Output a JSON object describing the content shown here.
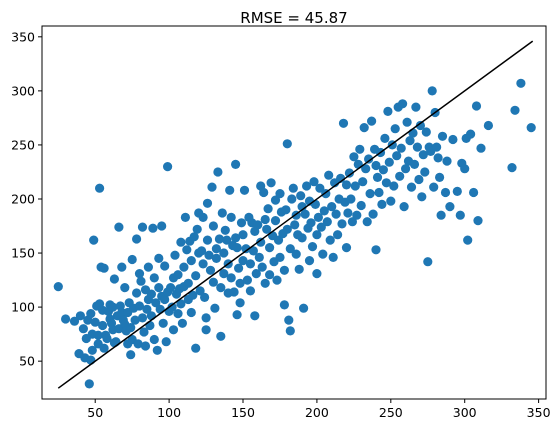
{
  "chart_data": {
    "type": "scatter",
    "title": "RMSE = 45.87",
    "xlabel": "",
    "ylabel": "",
    "xlim": [
      14,
      355
    ],
    "ylim": [
      15,
      360
    ],
    "xticks": [
      50,
      100,
      150,
      200,
      250,
      300,
      350
    ],
    "yticks": [
      50,
      100,
      150,
      200,
      250,
      300,
      350
    ],
    "grid": false,
    "legend": "none",
    "colors": {
      "points": "#1f77b4",
      "line": "#000000"
    },
    "reference_line": {
      "x": [
        25,
        346
      ],
      "y": [
        25,
        346
      ]
    },
    "points": [
      [
        25,
        119
      ],
      [
        30,
        89
      ],
      [
        36,
        87
      ],
      [
        39,
        57
      ],
      [
        40,
        92
      ],
      [
        42,
        80
      ],
      [
        43,
        53
      ],
      [
        44,
        71
      ],
      [
        45,
        88
      ],
      [
        46,
        29
      ],
      [
        47,
        51
      ],
      [
        47,
        94
      ],
      [
        48,
        75
      ],
      [
        48,
        60
      ],
      [
        49,
        162
      ],
      [
        50,
        86
      ],
      [
        51,
        101
      ],
      [
        52,
        74
      ],
      [
        52,
        66
      ],
      [
        53,
        210
      ],
      [
        53,
        103
      ],
      [
        54,
        137
      ],
      [
        55,
        97
      ],
      [
        55,
        83
      ],
      [
        56,
        136
      ],
      [
        56,
        62
      ],
      [
        57,
        74
      ],
      [
        58,
        71
      ],
      [
        59,
        96
      ],
      [
        60,
        102
      ],
      [
        60,
        89
      ],
      [
        61,
        85
      ],
      [
        62,
        79
      ],
      [
        62,
        100
      ],
      [
        63,
        67
      ],
      [
        63,
        126
      ],
      [
        64,
        68
      ],
      [
        65,
        92
      ],
      [
        66,
        174
      ],
      [
        66,
        80
      ],
      [
        67,
        101
      ],
      [
        68,
        137
      ],
      [
        68,
        95
      ],
      [
        69,
        88
      ],
      [
        70,
        84
      ],
      [
        70,
        118
      ],
      [
        71,
        78
      ],
      [
        72,
        95
      ],
      [
        72,
        66
      ],
      [
        73,
        104
      ],
      [
        74,
        81
      ],
      [
        74,
        56
      ],
      [
        75,
        144
      ],
      [
        75,
        70
      ],
      [
        76,
        99
      ],
      [
        77,
        88
      ],
      [
        78,
        113
      ],
      [
        78,
        163
      ],
      [
        79,
        66
      ],
      [
        80,
        101
      ],
      [
        80,
        131
      ],
      [
        81,
        124
      ],
      [
        82,
        174
      ],
      [
        82,
        90
      ],
      [
        83,
        77
      ],
      [
        84,
        116
      ],
      [
        84,
        64
      ],
      [
        85,
        98
      ],
      [
        86,
        137
      ],
      [
        86,
        107
      ],
      [
        87,
        83
      ],
      [
        88,
        112
      ],
      [
        88,
        92
      ],
      [
        89,
        173
      ],
      [
        90,
        70
      ],
      [
        90,
        127
      ],
      [
        91,
        104
      ],
      [
        92,
        60
      ],
      [
        93,
        145
      ],
      [
        93,
        118
      ],
      [
        94,
        98
      ],
      [
        95,
        110
      ],
      [
        95,
        175
      ],
      [
        96,
        85
      ],
      [
        97,
        107
      ],
      [
        97,
        138
      ],
      [
        98,
        68
      ],
      [
        99,
        230
      ],
      [
        99,
        114
      ],
      [
        100,
        96
      ],
      [
        101,
        118
      ],
      [
        102,
        100
      ],
      [
        103,
        127
      ],
      [
        103,
        79
      ],
      [
        104,
        148
      ],
      [
        105,
        112
      ],
      [
        106,
        130
      ],
      [
        106,
        94
      ],
      [
        107,
        117
      ],
      [
        108,
        160
      ],
      [
        108,
        103
      ],
      [
        109,
        85
      ],
      [
        110,
        137
      ],
      [
        110,
        119
      ],
      [
        111,
        183
      ],
      [
        112,
        153
      ],
      [
        113,
        122
      ],
      [
        113,
        107
      ],
      [
        114,
        161
      ],
      [
        115,
        143
      ],
      [
        115,
        95
      ],
      [
        116,
        111
      ],
      [
        117,
        165
      ],
      [
        118,
        129
      ],
      [
        118,
        62
      ],
      [
        119,
        172
      ],
      [
        120,
        187
      ],
      [
        120,
        150
      ],
      [
        121,
        115
      ],
      [
        122,
        152
      ],
      [
        123,
        183
      ],
      [
        123,
        140
      ],
      [
        124,
        109
      ],
      [
        125,
        90
      ],
      [
        125,
        79
      ],
      [
        126,
        196
      ],
      [
        126,
        162
      ],
      [
        127,
        148
      ],
      [
        128,
        134
      ],
      [
        129,
        211
      ],
      [
        130,
        175
      ],
      [
        130,
        123
      ],
      [
        131,
        99
      ],
      [
        132,
        145
      ],
      [
        132,
        154
      ],
      [
        133,
        225
      ],
      [
        134,
        163
      ],
      [
        135,
        118
      ],
      [
        135,
        73
      ],
      [
        136,
        187
      ],
      [
        137,
        150
      ],
      [
        137,
        131
      ],
      [
        138,
        171
      ],
      [
        139,
        162
      ],
      [
        140,
        140
      ],
      [
        140,
        113
      ],
      [
        141,
        208
      ],
      [
        142,
        183
      ],
      [
        142,
        127
      ],
      [
        143,
        157
      ],
      [
        144,
        114
      ],
      [
        145,
        232
      ],
      [
        145,
        164
      ],
      [
        146,
        155
      ],
      [
        146,
        93
      ],
      [
        147,
        136
      ],
      [
        148,
        122
      ],
      [
        148,
        104
      ],
      [
        149,
        178
      ],
      [
        150,
        167
      ],
      [
        150,
        143
      ],
      [
        151,
        208
      ],
      [
        152,
        154
      ],
      [
        153,
        125
      ],
      [
        154,
        183
      ],
      [
        155,
        140
      ],
      [
        155,
        115
      ],
      [
        156,
        178
      ],
      [
        157,
        152
      ],
      [
        158,
        170
      ],
      [
        158,
        92
      ],
      [
        159,
        131
      ],
      [
        160,
        176
      ],
      [
        161,
        146
      ],
      [
        162,
        212
      ],
      [
        162,
        160
      ],
      [
        163,
        137
      ],
      [
        164,
        206
      ],
      [
        165,
        181
      ],
      [
        165,
        122
      ],
      [
        166,
        172
      ],
      [
        167,
        191
      ],
      [
        168,
        155
      ],
      [
        168,
        130
      ],
      [
        169,
        215
      ],
      [
        170,
        166
      ],
      [
        171,
        142
      ],
      [
        172,
        199
      ],
      [
        172,
        180
      ],
      [
        173,
        125
      ],
      [
        174,
        162
      ],
      [
        175,
        205
      ],
      [
        175,
        146
      ],
      [
        176,
        188
      ],
      [
        177,
        168
      ],
      [
        178,
        134
      ],
      [
        178,
        102
      ],
      [
        179,
        190
      ],
      [
        180,
        251
      ],
      [
        180,
        172
      ],
      [
        181,
        88
      ],
      [
        182,
        154
      ],
      [
        182,
        78
      ],
      [
        183,
        200
      ],
      [
        184,
        210
      ],
      [
        185,
        176
      ],
      [
        186,
        185
      ],
      [
        186,
        149
      ],
      [
        187,
        167
      ],
      [
        188,
        135
      ],
      [
        189,
        203
      ],
      [
        190,
        193
      ],
      [
        190,
        164
      ],
      [
        191,
        99
      ],
      [
        192,
        186
      ],
      [
        193,
        212
      ],
      [
        194,
        173
      ],
      [
        195,
        143
      ],
      [
        195,
        198
      ],
      [
        196,
        178
      ],
      [
        197,
        156
      ],
      [
        198,
        216
      ],
      [
        199,
        195
      ],
      [
        200,
        167
      ],
      [
        200,
        131
      ],
      [
        201,
        183
      ],
      [
        202,
        210
      ],
      [
        203,
        174
      ],
      [
        204,
        149
      ],
      [
        205,
        189
      ],
      [
        206,
        205
      ],
      [
        207,
        179
      ],
      [
        208,
        222
      ],
      [
        209,
        162
      ],
      [
        210,
        193
      ],
      [
        211,
        146
      ],
      [
        212,
        215
      ],
      [
        213,
        186
      ],
      [
        214,
        167
      ],
      [
        215,
        200
      ],
      [
        216,
        219
      ],
      [
        217,
        177
      ],
      [
        218,
        270
      ],
      [
        219,
        197
      ],
      [
        220,
        155
      ],
      [
        220,
        213
      ],
      [
        221,
        187
      ],
      [
        222,
        224
      ],
      [
        223,
        200
      ],
      [
        224,
        179
      ],
      [
        225,
        239
      ],
      [
        226,
        212
      ],
      [
        227,
        185
      ],
      [
        228,
        232
      ],
      [
        229,
        246
      ],
      [
        230,
        194
      ],
      [
        231,
        216
      ],
      [
        232,
        266
      ],
      [
        233,
        228
      ],
      [
        234,
        179
      ],
      [
        235,
        237
      ],
      [
        236,
        205
      ],
      [
        237,
        272
      ],
      [
        238,
        186
      ],
      [
        239,
        246
      ],
      [
        240,
        231
      ],
      [
        240,
        153
      ],
      [
        241,
        220
      ],
      [
        242,
        206
      ],
      [
        243,
        243
      ],
      [
        244,
        195
      ],
      [
        245,
        227
      ],
      [
        246,
        256
      ],
      [
        247,
        215
      ],
      [
        248,
        281
      ],
      [
        249,
        234
      ],
      [
        250,
        198
      ],
      [
        251,
        250
      ],
      [
        252,
        212
      ],
      [
        253,
        265
      ],
      [
        254,
        240
      ],
      [
        255,
        285
      ],
      [
        256,
        221
      ],
      [
        257,
        247
      ],
      [
        258,
        288
      ],
      [
        259,
        193
      ],
      [
        260,
        228
      ],
      [
        261,
        271
      ],
      [
        262,
        235
      ],
      [
        263,
        254
      ],
      [
        264,
        211
      ],
      [
        265,
        261
      ],
      [
        266,
        232
      ],
      [
        267,
        285
      ],
      [
        268,
        248
      ],
      [
        269,
        218
      ],
      [
        270,
        268
      ],
      [
        271,
        202
      ],
      [
        272,
        241
      ],
      [
        273,
        225
      ],
      [
        274,
        262
      ],
      [
        275,
        142
      ],
      [
        276,
        248
      ],
      [
        277,
        244
      ],
      [
        278,
        300
      ],
      [
        279,
        211
      ],
      [
        280,
        280
      ],
      [
        281,
        248
      ],
      [
        282,
        238
      ],
      [
        283,
        220
      ],
      [
        284,
        185
      ],
      [
        285,
        258
      ],
      [
        287,
        206
      ],
      [
        288,
        235
      ],
      [
        290,
        193
      ],
      [
        292,
        255
      ],
      [
        295,
        207
      ],
      [
        297,
        185
      ],
      [
        298,
        233
      ],
      [
        300,
        228
      ],
      [
        301,
        256
      ],
      [
        302,
        162
      ],
      [
        304,
        260
      ],
      [
        306,
        206
      ],
      [
        308,
        286
      ],
      [
        309,
        180
      ],
      [
        311,
        247
      ],
      [
        316,
        268
      ],
      [
        332,
        229
      ],
      [
        334,
        282
      ],
      [
        338,
        307
      ],
      [
        345,
        266
      ]
    ]
  }
}
